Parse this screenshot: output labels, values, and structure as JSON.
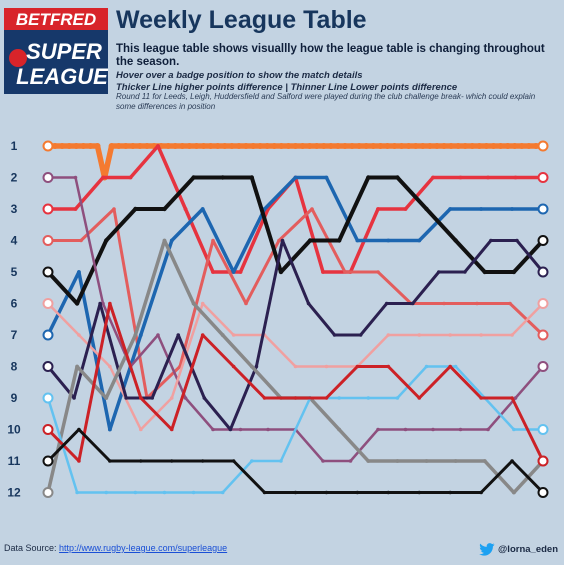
{
  "header": {
    "logo_top": "BETFRED",
    "logo_line1": "SUPER",
    "logo_line2": "LEAGUE",
    "title": "Weekly League Table",
    "subtitle": "This league table shows visuallly how the league table is changing throughout the season.",
    "note_hover": "Hover over a badge position to show the match details",
    "note_thickness": "Thicker Line higher points difference | Thinner Line Lower points difference",
    "note_round": "Round 11 for Leeds, Leigh, Huddersfield and Salford were played during the club challenge break- which could explain some differences in position"
  },
  "footer": {
    "source_label": "Data Source:",
    "source_link": "http://www.rugby-league.com/superleague",
    "twitter": "@lorna_eden"
  },
  "colors": {
    "background": "#c3d3e2",
    "title": "#17365d",
    "logo_red": "#d8242a",
    "logo_navy": "#16386a",
    "twitter_blue": "#1da1f2"
  },
  "chart_data": {
    "type": "line",
    "y_axis": {
      "labels": [
        "1",
        "2",
        "3",
        "4",
        "5",
        "6",
        "7",
        "8",
        "9",
        "10",
        "11",
        "12"
      ],
      "reversed": true,
      "ylim": [
        1,
        12
      ]
    },
    "x_rounds": 17,
    "grid": false,
    "series": [
      {
        "color": "#f47a30",
        "width": 5.5,
        "positions": [
          1,
          1,
          1,
          1,
          1,
          1,
          1,
          1,
          2,
          1,
          1,
          1,
          1,
          1,
          1,
          1,
          1,
          1,
          1,
          1,
          1,
          1,
          1,
          1,
          1,
          1,
          1,
          1,
          1,
          1,
          1,
          1,
          1,
          1,
          1,
          1,
          1,
          1,
          1,
          1,
          1,
          1,
          1,
          1,
          1,
          1,
          1,
          1,
          1,
          1,
          1,
          1,
          1,
          1,
          1,
          1,
          1,
          1,
          1,
          1,
          1,
          1,
          1,
          1,
          1,
          1,
          1,
          1,
          1,
          1,
          1
        ]
      },
      {
        "color": "#e6333f",
        "width": 3.5,
        "positions": [
          3,
          3,
          2,
          2,
          1,
          3,
          5,
          5,
          3,
          2,
          5,
          5,
          3,
          3,
          2,
          2,
          2,
          2,
          2
        ]
      },
      {
        "color": "#e35d5d",
        "width": 3,
        "positions": [
          4,
          4,
          3,
          9,
          8,
          4,
          6,
          4,
          3,
          5,
          5,
          6,
          6,
          6,
          6,
          7
        ]
      },
      {
        "color": "#1d66b0",
        "width": 3.5,
        "positions": [
          7,
          5,
          10,
          7,
          4,
          3,
          5,
          3,
          2,
          2,
          4,
          4,
          4,
          3,
          3,
          3,
          3
        ]
      },
      {
        "color": "#111111",
        "width": 4,
        "positions": [
          5,
          6,
          4,
          3,
          3,
          2,
          2,
          2,
          5,
          4,
          4,
          2,
          2,
          3,
          4,
          5,
          5,
          4
        ]
      },
      {
        "color": "#8e4f7e",
        "width": 2.5,
        "positions": [
          2,
          2,
          6,
          8,
          7,
          9,
          10,
          10,
          10,
          10,
          11,
          11,
          10,
          10,
          10,
          10,
          10,
          9,
          8
        ]
      },
      {
        "color": "#f0a0a0",
        "width": 2.5,
        "positions": [
          6,
          7,
          8,
          10,
          9,
          6,
          7,
          7,
          8,
          8,
          8,
          7,
          7,
          7,
          7,
          7,
          6
        ]
      },
      {
        "color": "#2b2050",
        "width": 3,
        "positions": [
          8,
          9,
          6,
          9,
          9,
          7,
          9,
          10,
          8,
          4,
          6,
          7,
          7,
          6,
          6,
          5,
          5,
          4,
          4,
          5
        ]
      },
      {
        "color": "#888888",
        "width": 3.5,
        "positions": [
          12,
          8,
          9,
          7,
          4,
          6,
          7,
          8,
          9,
          9,
          10,
          11,
          11,
          11,
          11,
          11,
          12,
          11
        ]
      },
      {
        "color": "#63c2f0",
        "width": 2.5,
        "positions": [
          9,
          12,
          12,
          12,
          12,
          12,
          12,
          11,
          11,
          9,
          9,
          9,
          9,
          8,
          8,
          9,
          10,
          10
        ]
      },
      {
        "color": "#cc2126",
        "width": 3,
        "positions": [
          10,
          11,
          6,
          9,
          10,
          7,
          8,
          9,
          9,
          9,
          8,
          8,
          9,
          8,
          9,
          9,
          11
        ]
      },
      {
        "color": "#111111",
        "width": 3,
        "positions": [
          11,
          10,
          11,
          11,
          11,
          11,
          11,
          12,
          12,
          12,
          12,
          12,
          12,
          12,
          12,
          11,
          12
        ]
      }
    ]
  }
}
